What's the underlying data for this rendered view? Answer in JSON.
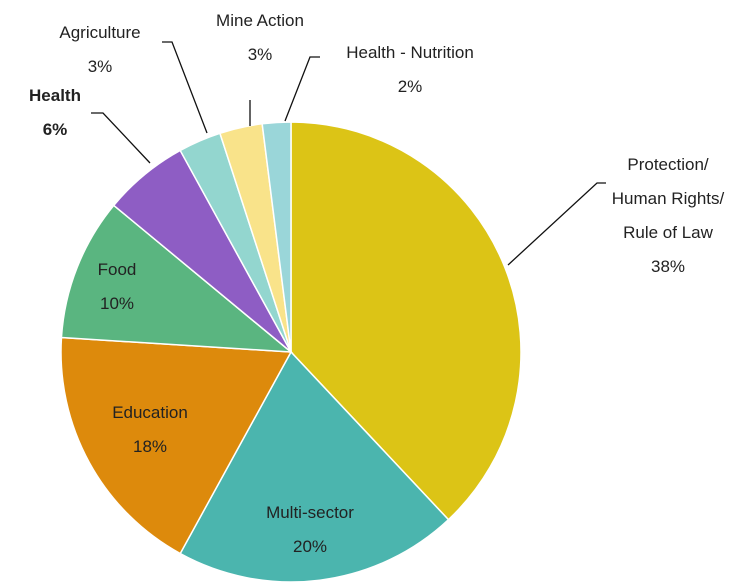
{
  "chart_data": {
    "type": "pie",
    "categories": [
      "Protection/ Human Rights/ Rule of Law",
      "Multi-sector",
      "Education",
      "Food",
      "Health",
      "Agriculture",
      "Mine Action",
      "Health - Nutrition"
    ],
    "values": [
      38,
      20,
      18,
      10,
      6,
      3,
      3,
      2
    ],
    "value_labels": [
      "38%",
      "20%",
      "18%",
      "10%",
      "6%",
      "3%",
      "3%",
      "2%"
    ],
    "colors": [
      "#dcc416",
      "#4bb5ae",
      "#dd8a0c",
      "#5ab580",
      "#8e5dc4",
      "#93d6cf",
      "#f9e38a",
      "#9ad6d9"
    ],
    "bold_categories": [
      "Health"
    ]
  }
}
